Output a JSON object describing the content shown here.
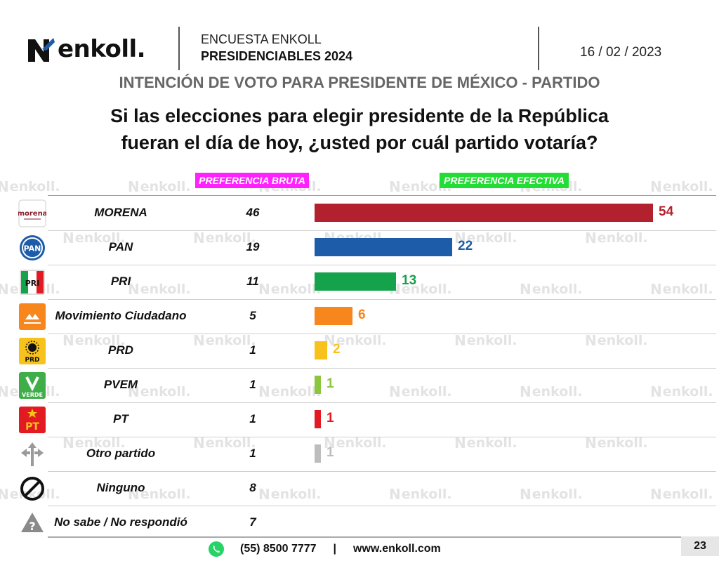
{
  "header": {
    "brand": "enkoll.",
    "survey_line1": "ENCUESTA ENKOLL",
    "survey_line2": "PRESIDENCIABLES 2024",
    "date": "16 / 02 / 2023"
  },
  "watermark": "enkoll.",
  "chart_data": {
    "type": "bar",
    "title": "INTENCIÓN DE VOTO PARA PRESIDENTE DE MÉXICO - PARTIDO",
    "subtitle_line1": "Si las elecciones para elegir presidente de la República",
    "subtitle_line2": "fueran el día de hoy, ¿usted por cuál partido votaría?",
    "column_bruta": "PREFERENCIA BRUTA",
    "column_efectiva": "PREFERENCIA EFECTIVA",
    "categories": [
      "MORENA",
      "PAN",
      "PRI",
      "Movimiento Ciudadano",
      "PRD",
      "PVEM",
      "PT",
      "Otro partido",
      "Ninguno",
      "No sabe / No respondió"
    ],
    "series": [
      {
        "name": "PREFERENCIA BRUTA",
        "values": [
          46,
          19,
          11,
          5,
          1,
          1,
          1,
          1,
          8,
          7
        ]
      },
      {
        "name": "PREFERENCIA EFECTIVA",
        "values": [
          54,
          22,
          13,
          6,
          2,
          1,
          1,
          1,
          null,
          null
        ]
      }
    ],
    "bar_colors": [
      "#b3202e",
      "#1c5ca8",
      "#14a24a",
      "#f7861c",
      "#f8c21c",
      "#8cc63f",
      "#e21b22",
      "#bdbdbd"
    ],
    "xlim": [
      0,
      54
    ]
  },
  "icons": {
    "morena_text": "morena",
    "pan_text": "PAN",
    "pri_text": "PRI",
    "prd_text": "PRD",
    "verde_text": "VERDE",
    "pt_text": "PT"
  },
  "footer": {
    "phone": "(55) 8500 7777",
    "separator": "|",
    "website": "www.enkoll.com",
    "page": "23"
  }
}
